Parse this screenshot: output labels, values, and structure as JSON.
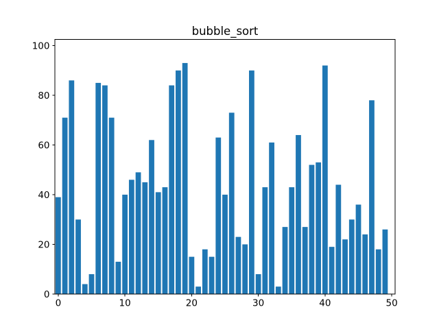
{
  "chart_data": {
    "type": "bar",
    "title": "bubble_sort",
    "xlabel": "",
    "ylabel": "",
    "x": [
      0,
      1,
      2,
      3,
      4,
      5,
      6,
      7,
      8,
      9,
      10,
      11,
      12,
      13,
      14,
      15,
      16,
      17,
      18,
      19,
      20,
      21,
      22,
      23,
      24,
      25,
      26,
      27,
      28,
      29,
      30,
      31,
      32,
      33,
      34,
      35,
      36,
      37,
      38,
      39,
      40,
      41,
      42,
      43,
      44,
      45,
      46,
      47,
      48,
      49
    ],
    "values": [
      39,
      71,
      86,
      30,
      4,
      8,
      85,
      84,
      71,
      13,
      40,
      46,
      49,
      45,
      62,
      41,
      43,
      84,
      90,
      93,
      15,
      3,
      18,
      15,
      63,
      40,
      73,
      23,
      20,
      90,
      8,
      43,
      61,
      3,
      27,
      43,
      64,
      27,
      52,
      53,
      92,
      19,
      44,
      22,
      30,
      36,
      24,
      78,
      18,
      26
    ],
    "bar_color": "#1f77b4",
    "axis_color": "#000000",
    "background_color": "#ffffff",
    "xlim": [
      -0.5,
      50.5
    ],
    "ylim": [
      0,
      102.5
    ],
    "xticks": [
      0,
      10,
      20,
      30,
      40,
      50
    ],
    "yticks": [
      0,
      20,
      40,
      60,
      80,
      100
    ],
    "grid": false,
    "legend": null
  }
}
